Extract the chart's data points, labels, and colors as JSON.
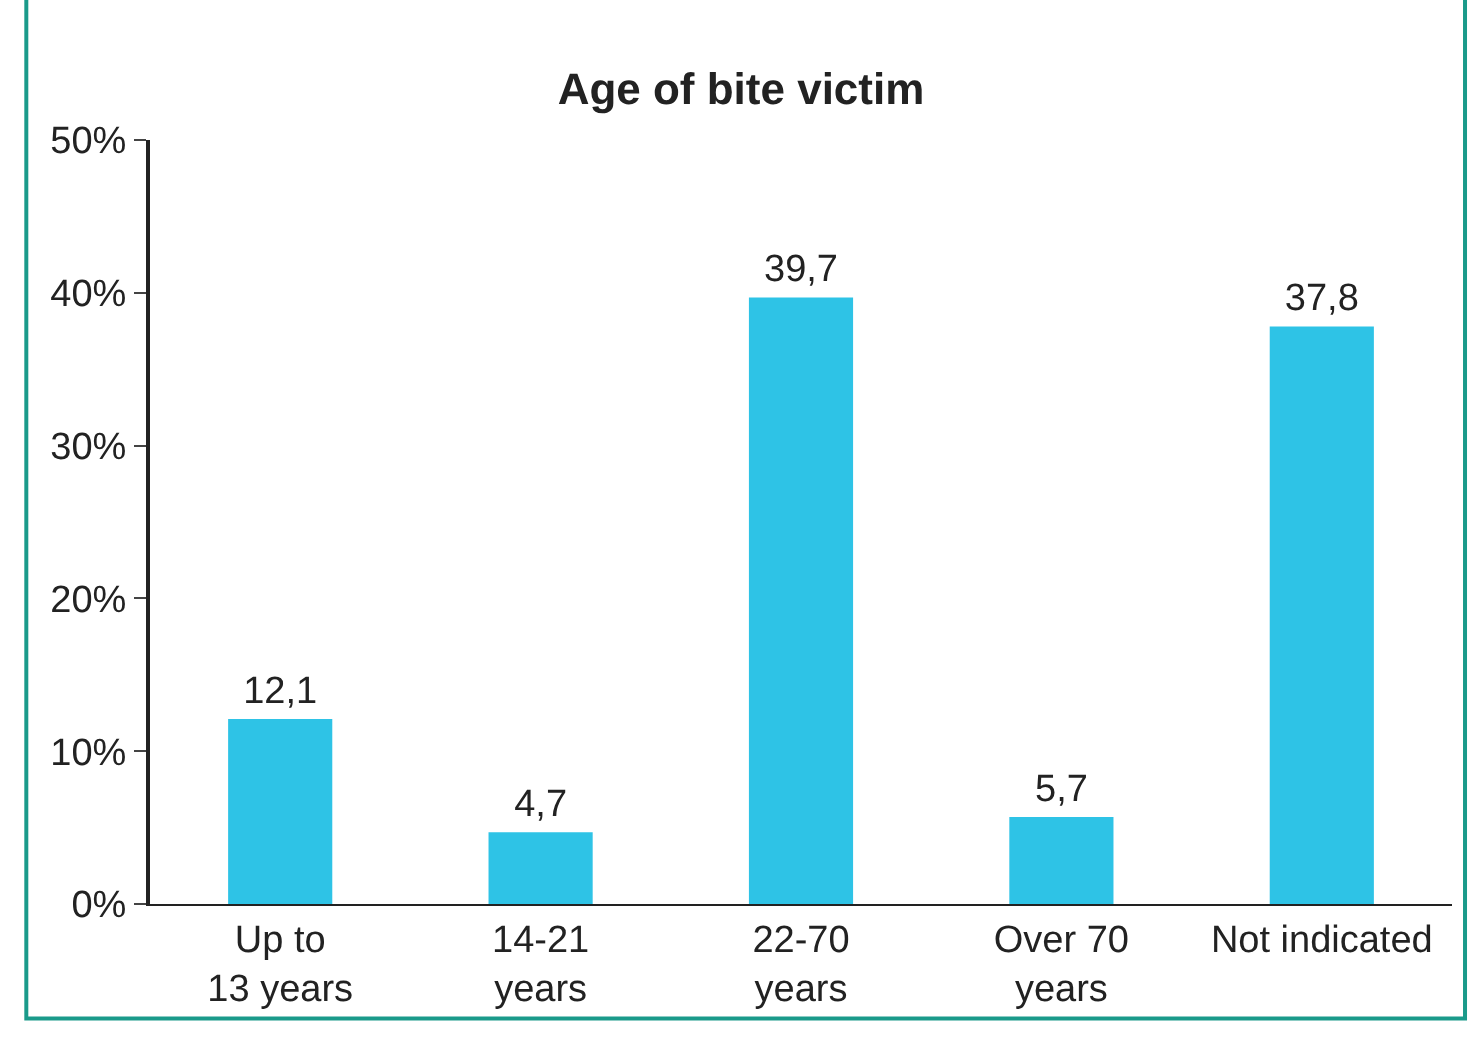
{
  "chart_data": {
    "type": "bar",
    "title": "Age of bite victim",
    "categories": [
      "Up to\n13 years",
      "14-21\nyears",
      "22-70\nyears",
      "Over 70\nyears",
      "Not indicated"
    ],
    "values": [
      12.1,
      4.7,
      39.7,
      5.7,
      37.8
    ],
    "value_labels": [
      "12,1",
      "4,7",
      "39,7",
      "5,7",
      "37,8"
    ],
    "color": "#2ec3e6",
    "ylim": [
      0,
      50
    ],
    "yticks": [
      {
        "value": 0,
        "label": "0%"
      },
      {
        "value": 10,
        "label": "10%"
      },
      {
        "value": 20,
        "label": "20%"
      },
      {
        "value": 30,
        "label": "30%"
      },
      {
        "value": 40,
        "label": "40%"
      },
      {
        "value": 50,
        "label": "50%"
      }
    ],
    "legend": false
  }
}
